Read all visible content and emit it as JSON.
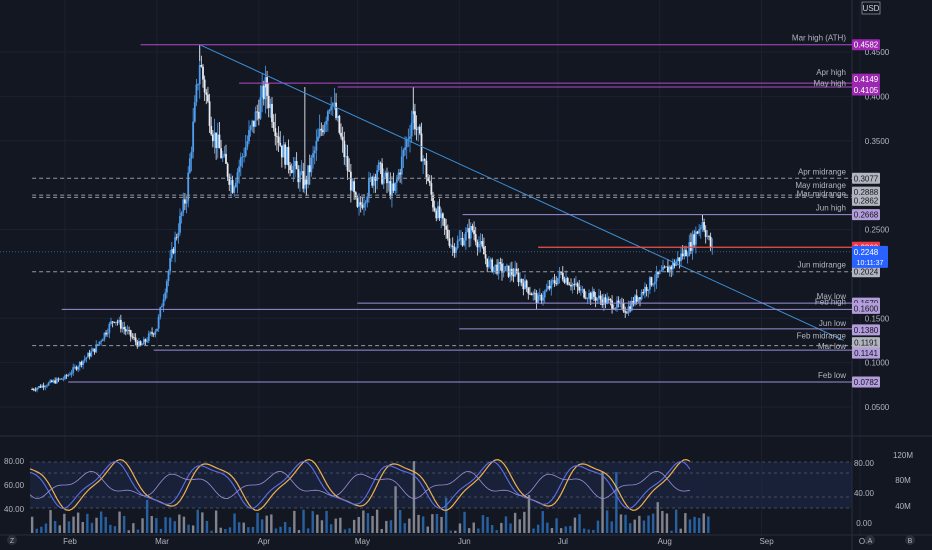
{
  "header": {
    "currency": "USD"
  },
  "price": {
    "current": "0.2248",
    "countdown": "10:11:37",
    "marker_line_value": "0.2300"
  },
  "price_axis_ticks": [
    "0.4500",
    "0.4000",
    "0.3500",
    "0.2500",
    "0.1500",
    "0.1000",
    "0.0500"
  ],
  "lower_axis_ticks": [
    "80.00",
    "60.00",
    "40.00"
  ],
  "volume_axis_ticks": [
    "120M",
    "80M",
    "40M"
  ],
  "osc_axis_ticks": [
    "80.00",
    "40.00",
    "0.00"
  ],
  "time_labels": [
    "Feb",
    "Mar",
    "Apr",
    "May",
    "Jun",
    "Jul",
    "Aug",
    "Sep",
    "Oct"
  ],
  "footer_badges": [
    "Z",
    "A",
    "B"
  ],
  "levels": [
    {
      "label": "Mar high (ATH)",
      "value": "0.4582",
      "style": "solid",
      "color": "#b249c9"
    },
    {
      "label": "Apr high",
      "value": "0.4149",
      "style": "solid",
      "color": "#b249c9"
    },
    {
      "label": "May high",
      "value": "0.4105",
      "style": "solid",
      "color": "#b249c9"
    },
    {
      "label": "Apr midrange",
      "value": "0.3077",
      "style": "dashed",
      "color": "#b2b5be"
    },
    {
      "label": "May midrange",
      "value": "0.2888",
      "style": "dashed",
      "color": "#b2b5be"
    },
    {
      "label": "Mar midrange",
      "value": "0.2862",
      "style": "dashed",
      "color": "#b2b5be"
    },
    {
      "label": "Jun high",
      "value": "0.2668",
      "style": "solid",
      "color": "#9c8fd6"
    },
    {
      "label": "Jun midrange",
      "value": "0.2024",
      "style": "dashed",
      "color": "#b2b5be"
    },
    {
      "label": "May low",
      "value": "0.1670",
      "style": "solid",
      "color": "#9c8fd6"
    },
    {
      "label": "Feb high",
      "value": "0.1600",
      "style": "solid",
      "color": "#9c8fd6"
    },
    {
      "label": "Jun low",
      "value": "0.1380",
      "style": "solid",
      "color": "#9c8fd6"
    },
    {
      "label": "Feb midrange",
      "value": "0.1191",
      "style": "dashed",
      "color": "#b2b5be"
    },
    {
      "label": "Mar low",
      "value": "0.1141",
      "style": "solid",
      "color": "#9c8fd6"
    },
    {
      "label": "Feb low",
      "value": "0.0782",
      "style": "solid",
      "color": "#9c8fd6"
    }
  ],
  "chart_data": {
    "type": "candlestick",
    "yaxis": {
      "range": [
        0.035,
        0.48
      ]
    },
    "trendline": {
      "from": {
        "date": "Mar 14",
        "value": 0.4582
      },
      "to": {
        "date": "Sep 26",
        "value": 0.125
      }
    },
    "red_level": 0.23,
    "price_path": [
      [
        "Jan 22",
        0.07
      ],
      [
        "Feb 1",
        0.083
      ],
      [
        "Feb 10",
        0.115
      ],
      [
        "Feb 16",
        0.15
      ],
      [
        "Feb 24",
        0.118
      ],
      [
        "Mar 1",
        0.14
      ],
      [
        "Mar 6",
        0.23
      ],
      [
        "Mar 10",
        0.29
      ],
      [
        "Mar 14",
        0.44
      ],
      [
        "Mar 18",
        0.36
      ],
      [
        "Mar 24",
        0.3
      ],
      [
        "Apr 3",
        0.41
      ],
      [
        "Apr 8",
        0.34
      ],
      [
        "Apr 15",
        0.3
      ],
      [
        "Apr 23",
        0.4
      ],
      [
        "May 1",
        0.27
      ],
      [
        "May 7",
        0.32
      ],
      [
        "May 12",
        0.29
      ],
      [
        "May 18",
        0.38
      ],
      [
        "May 24",
        0.28
      ],
      [
        "May 30",
        0.23
      ],
      [
        "Jun 5",
        0.25
      ],
      [
        "Jun 10",
        0.21
      ],
      [
        "Jun 18",
        0.2
      ],
      [
        "Jun 25",
        0.17
      ],
      [
        "Jul 2",
        0.2
      ],
      [
        "Jul 8",
        0.18
      ],
      [
        "Jul 15",
        0.17
      ],
      [
        "Jul 22",
        0.16
      ],
      [
        "Jul 29",
        0.19
      ],
      [
        "Aug 5",
        0.21
      ],
      [
        "Aug 10",
        0.23
      ],
      [
        "Aug 14",
        0.26
      ],
      [
        "Aug 17",
        0.225
      ]
    ]
  }
}
